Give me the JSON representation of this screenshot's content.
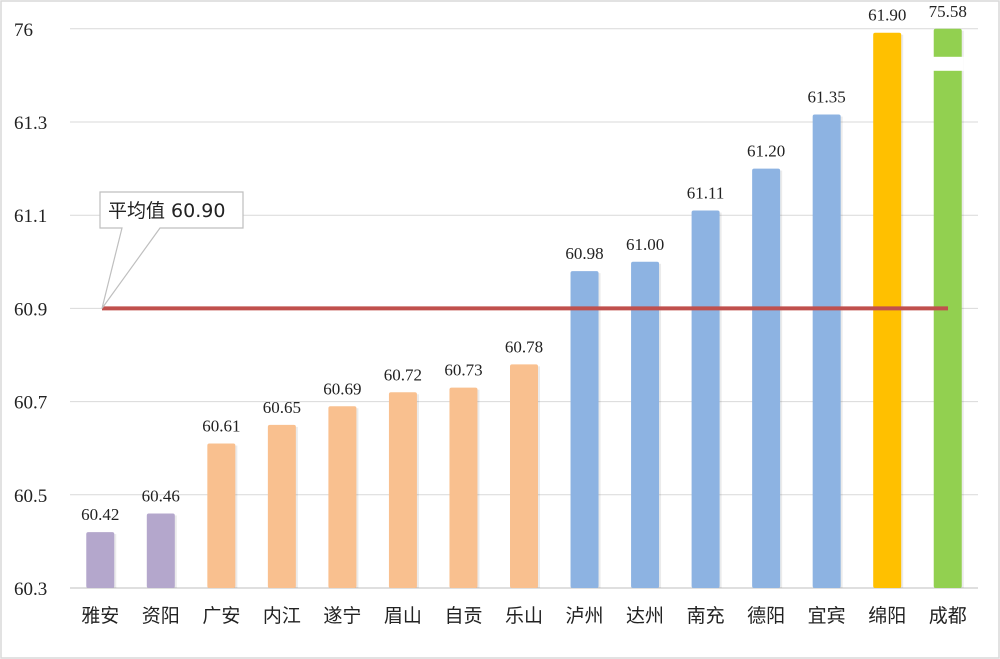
{
  "chart_data": {
    "type": "bar",
    "title": "",
    "xlabel": "",
    "ylabel": "",
    "categories": [
      "雅安",
      "资阳",
      "广安",
      "内江",
      "遂宁",
      "眉山",
      "自贡",
      "乐山",
      "泸州",
      "达州",
      "南充",
      "德阳",
      "宜宾",
      "绵阳",
      "成都"
    ],
    "values": [
      60.42,
      60.46,
      60.61,
      60.65,
      60.69,
      60.72,
      60.73,
      60.78,
      60.98,
      61.0,
      61.11,
      61.2,
      61.35,
      61.9,
      75.58
    ],
    "value_labels": [
      "60.42",
      "60.46",
      "60.61",
      "60.65",
      "60.69",
      "60.72",
      "60.73",
      "60.78",
      "60.98",
      "61.00",
      "61.11",
      "61.20",
      "61.35",
      "61.90",
      "75.58"
    ],
    "bar_colors": [
      "#b4a7cc",
      "#b4a7cc",
      "#f9c08f",
      "#f9c08f",
      "#f9c08f",
      "#f9c08f",
      "#f9c08f",
      "#f9c08f",
      "#8db3e2",
      "#8db3e2",
      "#8db3e2",
      "#8db3e2",
      "#8db3e2",
      "#ffc000",
      "#92d050"
    ],
    "y_ticks": [
      "60.3",
      "60.5",
      "60.7",
      "60.9",
      "61.1",
      "61.3",
      "76"
    ],
    "y_tick_values": [
      60.3,
      60.5,
      60.7,
      60.9,
      61.1,
      61.3,
      76
    ],
    "ylim": [
      60.3,
      76
    ],
    "y_scale": "broken",
    "grid": true,
    "reference_line": {
      "value": 60.9,
      "label": "平均值 60.90",
      "color": "#c0504d"
    }
  }
}
